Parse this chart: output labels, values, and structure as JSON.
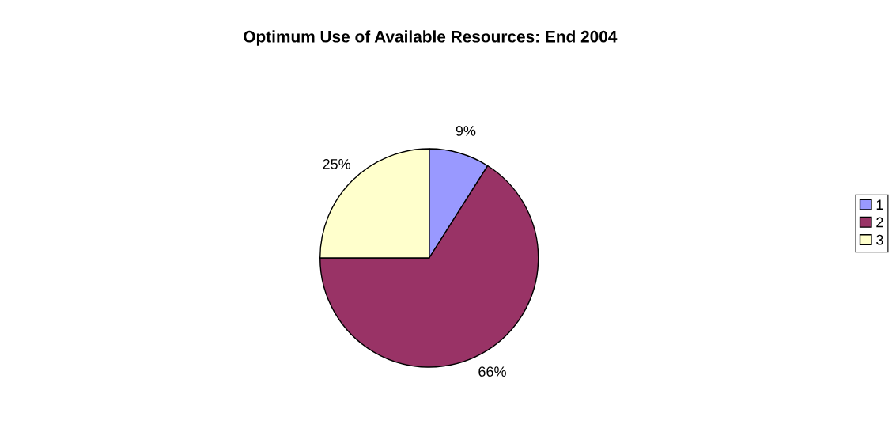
{
  "chart_data": {
    "type": "pie",
    "title": "Optimum Use of Available Resources: End 2004",
    "categories": [
      "1",
      "2",
      "3"
    ],
    "values": [
      9,
      66,
      25
    ],
    "colors": [
      "#9999ff",
      "#993366",
      "#ffffcc"
    ],
    "value_labels": [
      "9%",
      "66%",
      "25%"
    ],
    "legend": "right"
  }
}
